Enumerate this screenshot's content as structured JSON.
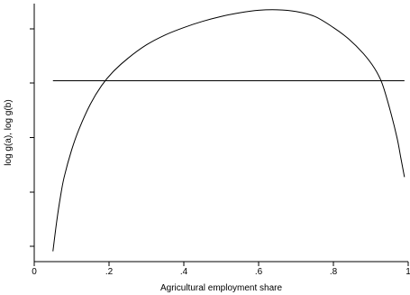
{
  "chart_data": {
    "type": "line",
    "xlabel": "Agricultural employment share",
    "ylabel": "log g(a), log g(b)",
    "xlim": [
      0,
      1
    ],
    "ylim": [
      0,
      1
    ],
    "x_ticks": [
      {
        "value": 0,
        "label": "0"
      },
      {
        "value": 0.2,
        "label": ".2"
      },
      {
        "value": 0.4,
        "label": ".4"
      },
      {
        "value": 0.6,
        "label": ".6"
      },
      {
        "value": 0.8,
        "label": ".8"
      },
      {
        "value": 1,
        "label": "1"
      }
    ],
    "y_ticks": [
      0.04,
      0.26,
      0.48,
      0.7,
      0.92
    ],
    "grid": false,
    "series": [
      {
        "x": [
          0.05,
          0.06,
          0.07,
          0.08,
          0.1,
          0.12,
          0.15,
          0.18,
          0.21,
          0.25,
          0.3,
          0.35,
          0.4,
          0.45,
          0.5,
          0.55,
          0.6,
          0.65,
          0.7,
          0.75,
          0.8,
          0.84,
          0.88,
          0.91,
          0.93,
          0.95,
          0.97,
          0.98,
          0.99
        ],
        "y": [
          0.02,
          0.14,
          0.24,
          0.32,
          0.43,
          0.515,
          0.615,
          0.69,
          0.745,
          0.8,
          0.855,
          0.895,
          0.925,
          0.95,
          0.97,
          0.985,
          0.995,
          0.997,
          0.99,
          0.97,
          0.925,
          0.88,
          0.82,
          0.76,
          0.7,
          0.6,
          0.48,
          0.4,
          0.32
        ]
      },
      {
        "x": [
          0.05,
          0.99
        ],
        "y": [
          0.71,
          0.71
        ]
      }
    ]
  }
}
